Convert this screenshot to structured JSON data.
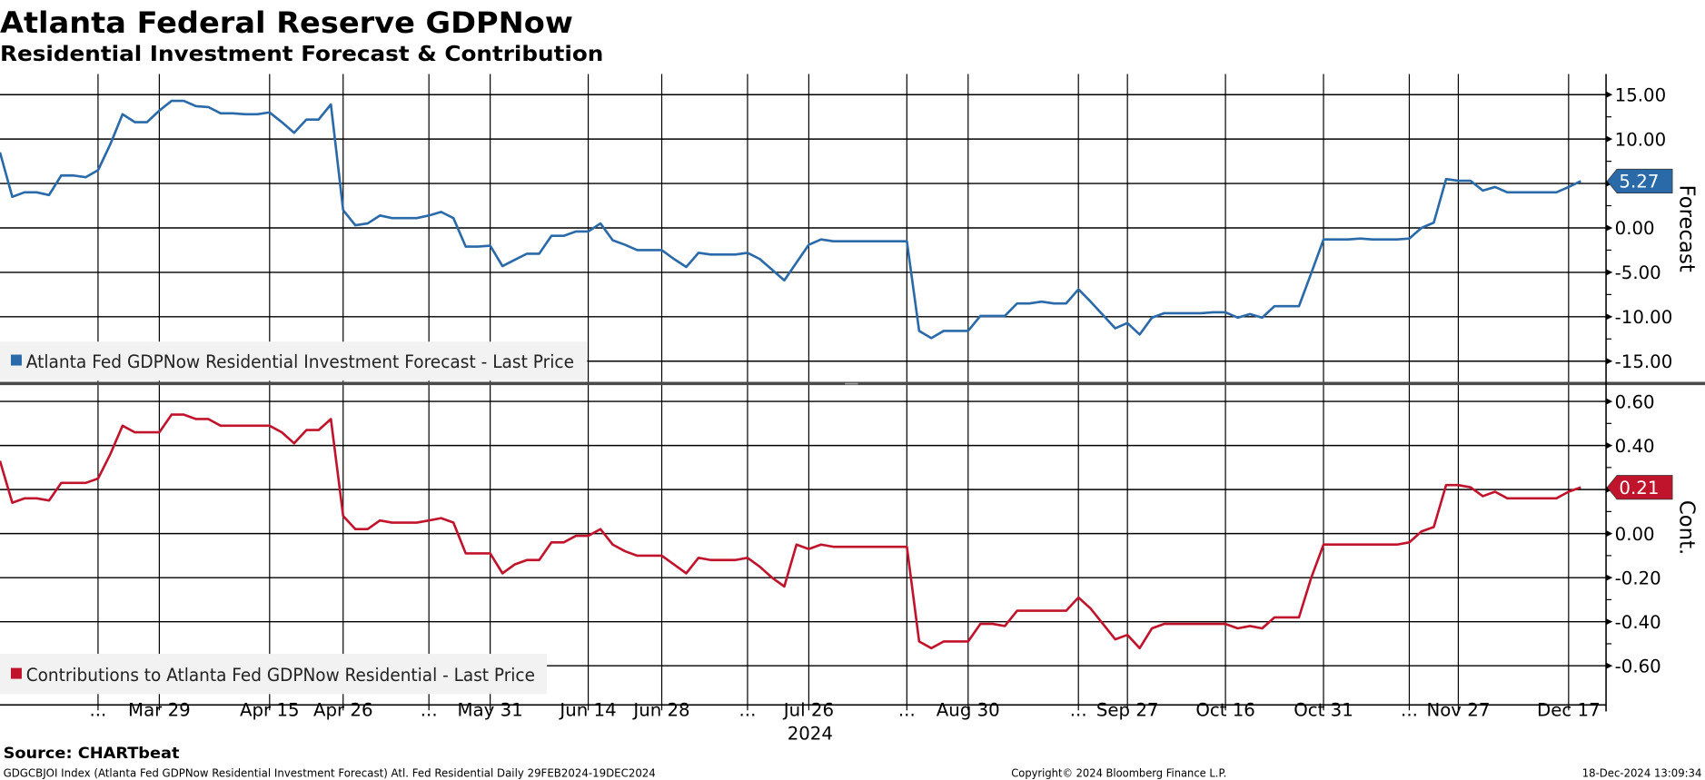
{
  "header": {
    "title": "Atlanta Federal Reserve GDPNow",
    "subtitle": "Residential Investment Forecast & Contribution"
  },
  "footer": {
    "source": "Source: CHARTbeat",
    "description": "GDGCBJOI Index (Atlanta Fed GDPNow Residential Investment Forecast) Atl. Fed Residential  Daily 29FEB2024-19DEC2024",
    "copyright": "Copyright© 2024 Bloomberg Finance L.P.",
    "timestamp": "18-Dec-2024 13:09:34"
  },
  "chart_data": [
    {
      "type": "line",
      "panel": "top",
      "title": "Atlanta Federal Reserve GDPNow",
      "ylabel": "Forecast",
      "ylim": [
        -17.5,
        18.5
      ],
      "yticks": [
        15,
        10,
        5,
        0,
        -5,
        -10,
        -15
      ],
      "ytick_labels": [
        "15.00",
        "10.00",
        "5.00",
        "0.00",
        "-5.00",
        "-10.00",
        "-15.00"
      ],
      "grid": true,
      "legend_position": "bottom-left",
      "series": [
        {
          "name": "Atlanta Fed GDPNow Residential Investment Forecast - Last Price",
          "color": "#2a6aa8",
          "last_value": "5.27",
          "values": [
            8.5,
            3.5,
            4.0,
            4.0,
            3.7,
            5.9,
            5.9,
            5.7,
            6.5,
            9.4,
            12.8,
            11.9,
            11.9,
            13.2,
            14.3,
            14.3,
            13.7,
            13.6,
            12.9,
            12.9,
            12.8,
            12.8,
            13.0,
            11.9,
            10.7,
            12.2,
            12.2,
            13.9,
            2.0,
            0.3,
            0.5,
            1.4,
            1.1,
            1.1,
            1.1,
            1.4,
            1.8,
            1.1,
            -2.1,
            -2.1,
            -2.0,
            -4.3,
            -3.6,
            -2.9,
            -2.9,
            -0.9,
            -0.9,
            -0.4,
            -0.4,
            0.5,
            -1.4,
            -1.9,
            -2.5,
            -2.5,
            -2.5,
            -3.5,
            -4.4,
            -2.8,
            -3.0,
            -3.0,
            -3.0,
            -2.8,
            -3.5,
            -4.7,
            -5.9,
            -3.9,
            -1.9,
            -1.3,
            -1.5,
            -1.5,
            -1.5,
            -1.5,
            -1.5,
            -1.5,
            -1.5,
            -11.6,
            -12.4,
            -11.6,
            -11.6,
            -11.6,
            -9.9,
            -9.9,
            -9.9,
            -8.5,
            -8.5,
            -8.3,
            -8.5,
            -8.5,
            -6.9,
            -8.3,
            -9.8,
            -11.3,
            -10.7,
            -12.0,
            -10.1,
            -9.6,
            -9.6,
            -9.6,
            -9.6,
            -9.5,
            -9.5,
            -10.1,
            -9.7,
            -10.1,
            -8.8,
            -8.8,
            -8.8,
            -5.1,
            -1.3,
            -1.3,
            -1.3,
            -1.2,
            -1.3,
            -1.3,
            -1.3,
            -1.2,
            0.0,
            0.6,
            5.5,
            5.3,
            5.3,
            4.2,
            4.6,
            4.0,
            4.0,
            4.0,
            4.0,
            4.0,
            4.6,
            5.27
          ]
        }
      ]
    },
    {
      "type": "line",
      "panel": "bottom",
      "ylabel": "Cont.",
      "ylim": [
        -0.7,
        0.68
      ],
      "yticks": [
        0.6,
        0.4,
        0.2,
        0.0,
        -0.2,
        -0.4,
        -0.6
      ],
      "ytick_labels": [
        "0.60",
        "0.40",
        "0.20",
        "0.00",
        "-0.20",
        "-0.40",
        "-0.60"
      ],
      "grid": true,
      "legend_position": "bottom-left",
      "series": [
        {
          "name": "Contributions to Atlanta Fed GDPNow Residential - Last Price",
          "color": "#c0142c",
          "last_value": "0.21",
          "values": [
            0.33,
            0.14,
            0.16,
            0.16,
            0.15,
            0.23,
            0.23,
            0.23,
            0.25,
            0.36,
            0.49,
            0.46,
            0.46,
            0.46,
            0.54,
            0.54,
            0.52,
            0.52,
            0.49,
            0.49,
            0.49,
            0.49,
            0.49,
            0.46,
            0.41,
            0.47,
            0.47,
            0.52,
            0.08,
            0.02,
            0.02,
            0.06,
            0.05,
            0.05,
            0.05,
            0.06,
            0.07,
            0.05,
            -0.09,
            -0.09,
            -0.09,
            -0.18,
            -0.14,
            -0.12,
            -0.12,
            -0.04,
            -0.04,
            -0.01,
            -0.01,
            0.02,
            -0.05,
            -0.08,
            -0.1,
            -0.1,
            -0.1,
            -0.14,
            -0.18,
            -0.11,
            -0.12,
            -0.12,
            -0.12,
            -0.11,
            -0.15,
            -0.2,
            -0.24,
            -0.05,
            -0.07,
            -0.05,
            -0.06,
            -0.06,
            -0.06,
            -0.06,
            -0.06,
            -0.06,
            -0.06,
            -0.49,
            -0.52,
            -0.49,
            -0.49,
            -0.49,
            -0.41,
            -0.41,
            -0.42,
            -0.35,
            -0.35,
            -0.35,
            -0.35,
            -0.35,
            -0.29,
            -0.34,
            -0.41,
            -0.48,
            -0.46,
            -0.52,
            -0.43,
            -0.41,
            -0.41,
            -0.41,
            -0.41,
            -0.41,
            -0.41,
            -0.43,
            -0.42,
            -0.43,
            -0.38,
            -0.38,
            -0.38,
            -0.2,
            -0.05,
            -0.05,
            -0.05,
            -0.05,
            -0.05,
            -0.05,
            -0.05,
            -0.04,
            0.01,
            0.03,
            0.22,
            0.22,
            0.21,
            0.17,
            0.19,
            0.16,
            0.16,
            0.16,
            0.16,
            0.16,
            0.19,
            0.21
          ]
        }
      ]
    }
  ],
  "x_axis": {
    "x_unit": "observation index",
    "tick_positions": [
      8,
      13,
      22,
      28,
      35,
      40,
      48,
      54,
      61,
      66,
      74,
      79,
      88,
      92,
      100,
      108,
      115,
      119,
      128
    ],
    "tick_labels": [
      "...",
      "Mar 29",
      "Apr 15",
      "Apr 26",
      "...",
      "May 31",
      "Jun 14",
      "Jun 28",
      "...",
      "Jul 26",
      "...",
      "Aug 30",
      "...",
      "Sep 27",
      "Oct 16",
      "Oct 31",
      "...",
      "Nov 27",
      "Dec 17"
    ],
    "year_label": "2024"
  }
}
